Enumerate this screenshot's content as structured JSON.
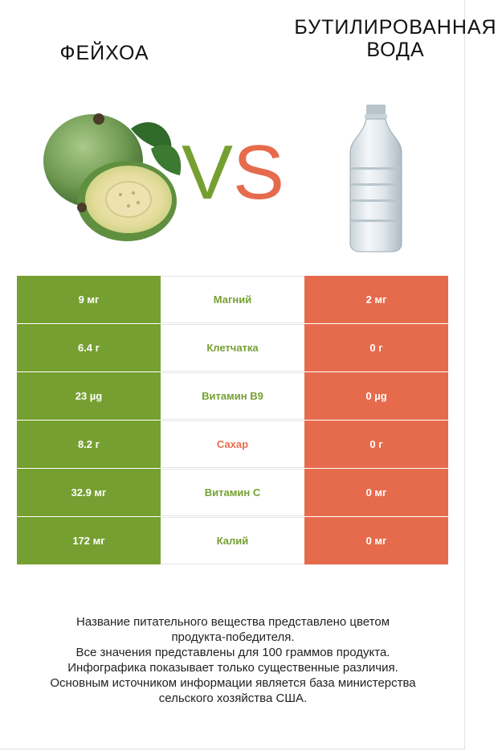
{
  "titles": {
    "left": "ФЕЙХОА",
    "right_line1": "БУТИЛИРОВАННАЯ",
    "right_line2": "ВОДА"
  },
  "vs": {
    "v": "V",
    "s": "S"
  },
  "colors": {
    "left": "#75a031",
    "right": "#e66b4d"
  },
  "images": {
    "left": "feijoa-image",
    "right": "water-bottle-image"
  },
  "rows": [
    {
      "left": "9 мг",
      "name": "Магний",
      "right": "2 мг",
      "winner": "left"
    },
    {
      "left": "6.4 г",
      "name": "Клетчатка",
      "right": "0 г",
      "winner": "left"
    },
    {
      "left": "23 µg",
      "name": "Витамин B9",
      "right": "0 µg",
      "winner": "left"
    },
    {
      "left": "8.2 г",
      "name": "Сахар",
      "right": "0 г",
      "winner": "right"
    },
    {
      "left": "32.9 мг",
      "name": "Витамин C",
      "right": "0 мг",
      "winner": "left"
    },
    {
      "left": "172 мг",
      "name": "Калий",
      "right": "0 мг",
      "winner": "left"
    }
  ],
  "footer": {
    "line1": "Название питательного вещества представлено цветом",
    "line2": "продукта-победителя.",
    "line3": "Все значения представлены для 100 граммов продукта.",
    "line4": "Инфографика показывает только существенные различия.",
    "line5": "Основным источником информации является база министерства",
    "line6": "сельского хозяйства США."
  }
}
